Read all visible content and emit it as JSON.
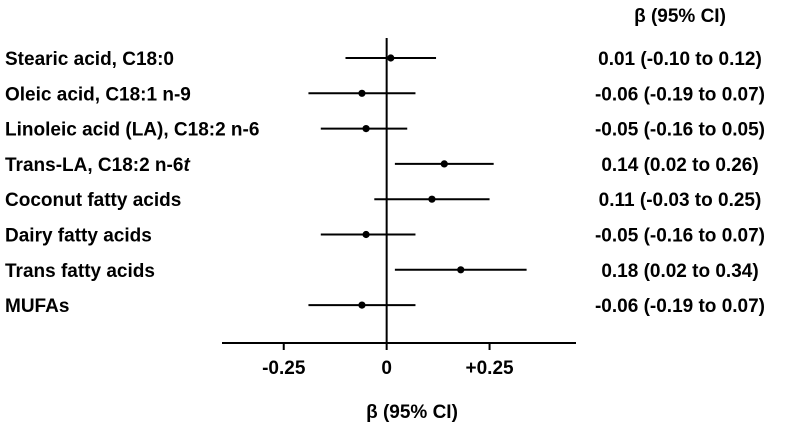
{
  "chart_data": {
    "type": "scatter",
    "subtype": "forest-plot",
    "ci_header": "β (95% CI)",
    "xlabel": "β (95% CI)",
    "xlim": [
      -0.4,
      0.46
    ],
    "xticks": [
      {
        "value": -0.25,
        "label": "-0.25"
      },
      {
        "value": 0,
        "label": "0"
      },
      {
        "value": 0.25,
        "label": "+0.25"
      }
    ],
    "reference_line": 0,
    "rows": [
      {
        "label": "Stearic acid, C18:0",
        "label_italic_suffix": "",
        "estimate": 0.01,
        "lower": -0.1,
        "upper": 0.12,
        "ci_text": "0.01 (-0.10 to 0.12)"
      },
      {
        "label": "Oleic acid, C18:1 n-9",
        "label_italic_suffix": "",
        "estimate": -0.06,
        "lower": -0.19,
        "upper": 0.07,
        "ci_text": "-0.06 (-0.19 to 0.07)"
      },
      {
        "label": "Linoleic acid (LA), C18:2 n-6",
        "label_italic_suffix": "",
        "estimate": -0.05,
        "lower": -0.16,
        "upper": 0.05,
        "ci_text": "-0.05 (-0.16 to 0.05)"
      },
      {
        "label": "Trans-LA, C18:2 n-6",
        "label_italic_suffix": "t",
        "estimate": 0.14,
        "lower": 0.02,
        "upper": 0.26,
        "ci_text": "0.14 (0.02 to 0.26)"
      },
      {
        "label": "Coconut fatty acids",
        "label_italic_suffix": "",
        "estimate": 0.11,
        "lower": -0.03,
        "upper": 0.25,
        "ci_text": "0.11 (-0.03 to 0.25)"
      },
      {
        "label": "Dairy fatty acids",
        "label_italic_suffix": "",
        "estimate": -0.05,
        "lower": -0.16,
        "upper": 0.07,
        "ci_text": "-0.05 (-0.16 to 0.07)"
      },
      {
        "label": "Trans fatty acids",
        "label_italic_suffix": "",
        "estimate": 0.18,
        "lower": 0.02,
        "upper": 0.34,
        "ci_text": "0.18 (0.02 to 0.34)"
      },
      {
        "label": "MUFAs",
        "label_italic_suffix": "",
        "estimate": -0.06,
        "lower": -0.19,
        "upper": 0.07,
        "ci_text": "-0.06 (-0.19 to 0.07)"
      }
    ],
    "colors": {
      "marks": "#000000",
      "text": "#000000",
      "background": "#ffffff"
    },
    "grid": false
  }
}
